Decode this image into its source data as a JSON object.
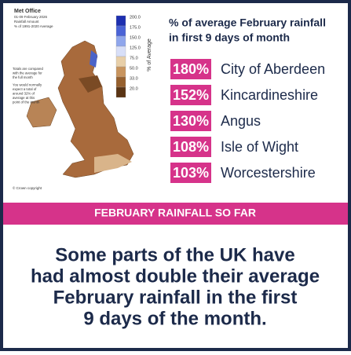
{
  "map_panel": {
    "brand": "Met Office",
    "legend_title": [
      "01-09 February 2026",
      "Rainfall Amount",
      "% of 1991-2020 Average"
    ],
    "legend_values": [
      "200.0",
      "175.0",
      "150.0",
      "125.0",
      "75.0",
      "50.0",
      "33.0",
      "20.0"
    ],
    "legend_axis": "% of Average",
    "notes": [
      "Totals are compared",
      "with the average for",
      "the full month",
      "You would normally",
      "expect a total of",
      "around 32% of",
      "average at this",
      "point of the month"
    ],
    "copyright": "© Crown copyright"
  },
  "list": {
    "title": [
      "% of average February rainfall",
      "in first 9 days of month"
    ],
    "rows": [
      {
        "percent": "180%",
        "place": "City of Aberdeen"
      },
      {
        "percent": "152%",
        "place": "Kincardineshire"
      },
      {
        "percent": "130%",
        "place": "Angus"
      },
      {
        "percent": "108%",
        "place": "Isle of Wight"
      },
      {
        "percent": "103%",
        "place": "Worcestershire"
      }
    ]
  },
  "banner": "FEBRUARY RAINFALL SO FAR",
  "message": [
    "Some parts of the UK have",
    "had almost double their average",
    "February rainfall in the first",
    "9 days of the month."
  ]
}
